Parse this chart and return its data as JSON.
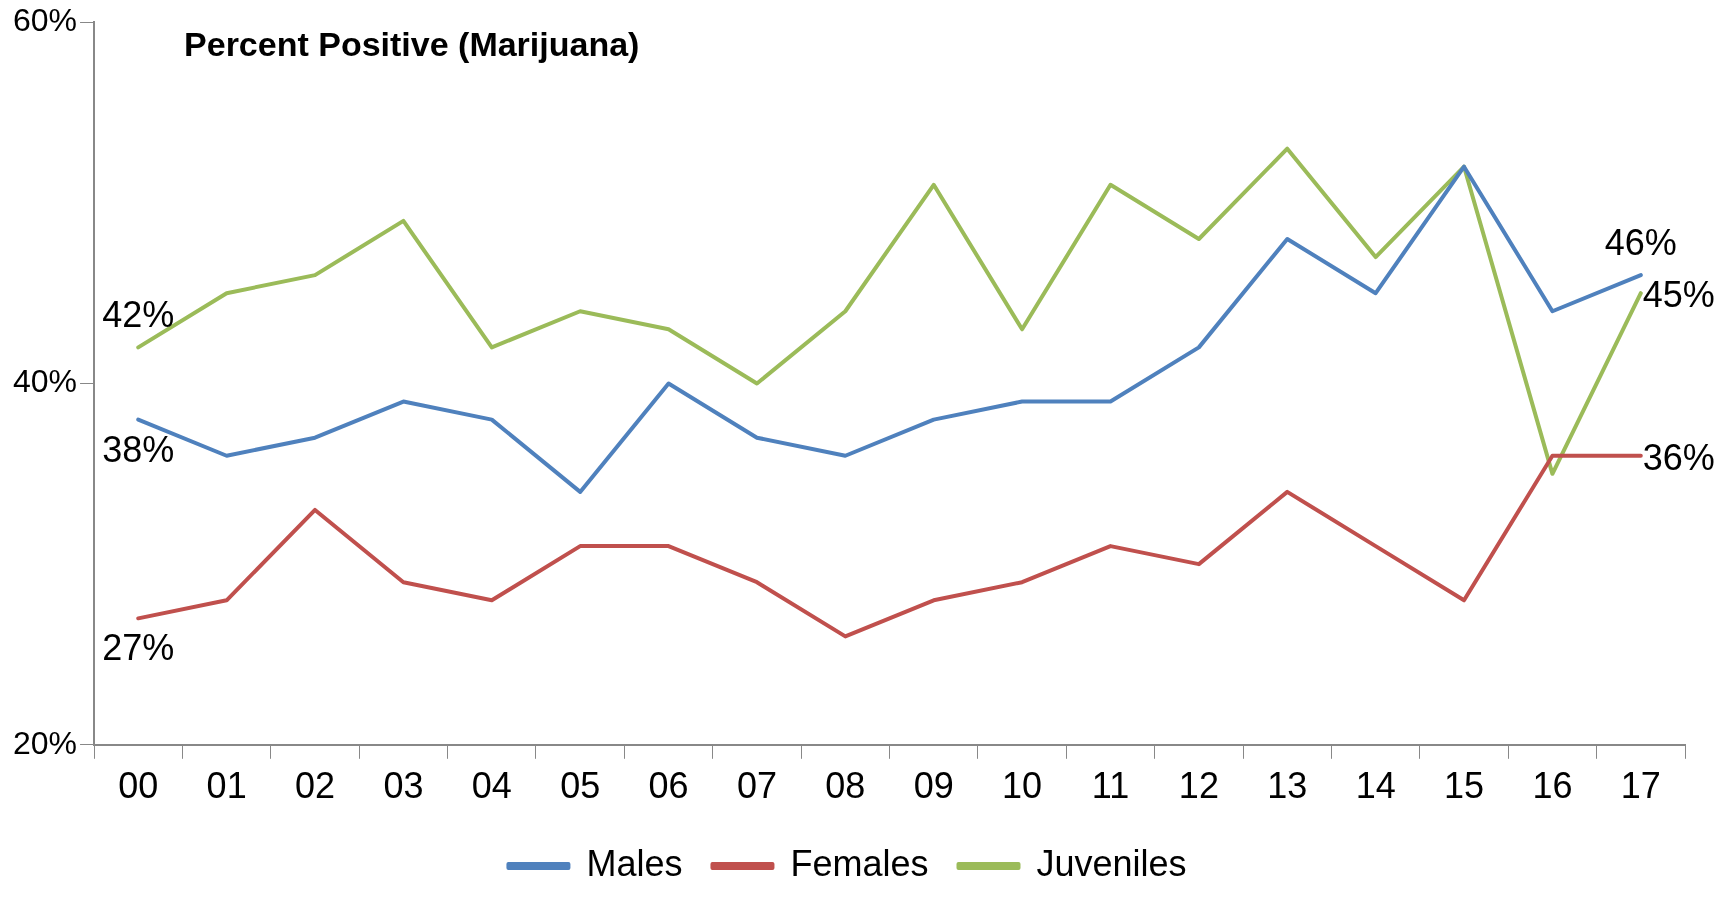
{
  "chart_data": {
    "type": "line",
    "title": "Percent Positive (Marijuana)",
    "categories": [
      "00",
      "01",
      "02",
      "03",
      "04",
      "05",
      "06",
      "07",
      "08",
      "09",
      "10",
      "11",
      "12",
      "13",
      "14",
      "15",
      "16",
      "17"
    ],
    "series": [
      {
        "name": "Males",
        "color": "#4f81bd",
        "values": [
          38,
          36,
          37,
          39,
          38,
          34,
          40,
          37,
          36,
          38,
          39,
          39,
          42,
          48,
          45,
          52,
          44,
          46
        ],
        "value_labels": [
          "38%",
          null,
          null,
          null,
          null,
          null,
          null,
          null,
          null,
          null,
          null,
          null,
          null,
          null,
          null,
          null,
          null,
          "46%"
        ]
      },
      {
        "name": "Females",
        "color": "#c0504d",
        "values": [
          27,
          28,
          33,
          29,
          28,
          31,
          31,
          29,
          26,
          28,
          29,
          31,
          30,
          34,
          31,
          28,
          36,
          36
        ],
        "value_labels": [
          "27%",
          null,
          null,
          null,
          null,
          null,
          null,
          null,
          null,
          null,
          null,
          null,
          null,
          null,
          null,
          null,
          null,
          "36%"
        ]
      },
      {
        "name": "Juveniles",
        "color": "#9bbb59",
        "values": [
          42,
          45,
          46,
          49,
          42,
          44,
          43,
          40,
          44,
          51,
          43,
          51,
          48,
          53,
          47,
          52,
          35,
          45
        ],
        "value_labels": [
          "42%",
          null,
          null,
          null,
          null,
          null,
          null,
          null,
          null,
          null,
          null,
          null,
          null,
          null,
          null,
          null,
          null,
          "45%"
        ]
      }
    ],
    "ylim": [
      20,
      60
    ],
    "yticks": [
      {
        "value": 20,
        "label": "20%"
      },
      {
        "value": 40,
        "label": "40%"
      },
      {
        "value": 60,
        "label": "60%"
      }
    ],
    "grid": false,
    "legend": "bottom",
    "marker": "none",
    "line_style": "solid"
  }
}
